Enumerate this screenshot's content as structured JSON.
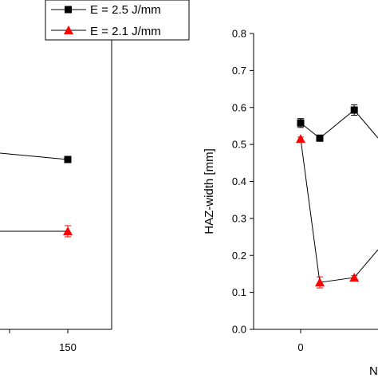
{
  "chart_data": [
    {
      "type": "line",
      "xlim": [
        null,
        150
      ],
      "x_ticks": [
        150
      ],
      "x_tick_labels": [
        "150"
      ],
      "series": [
        {
          "name": "E = 2.5 J/mm",
          "color": "#000000",
          "marker": "square",
          "x": [
            150
          ],
          "y": [
            null
          ]
        },
        {
          "name": "E = 2.1 J/mm",
          "color": "#ff0000",
          "marker": "triangle",
          "x": [
            150
          ],
          "y": [
            null
          ]
        }
      ],
      "legend": "top-left",
      "grid": false
    },
    {
      "type": "line",
      "ylabel": "HAZ-width [mm]",
      "xlabel": "N",
      "ylim": [
        0.0,
        0.8
      ],
      "y_ticks": [
        0.0,
        0.1,
        0.2,
        0.3,
        0.4,
        0.5,
        0.6,
        0.7,
        0.8
      ],
      "y_tick_labels": [
        "0.0",
        "0.1",
        "0.2",
        "0.3",
        "0.4",
        "0.5",
        "0.6",
        "0.7",
        "0.8"
      ],
      "x_ticks": [
        0
      ],
      "x_tick_labels": [
        "0"
      ],
      "series": [
        {
          "name": "E = 2.5 J/mm",
          "color": "#000000",
          "marker": "square",
          "x": [
            0,
            1,
            2.8
          ],
          "y": [
            0.558,
            0.517,
            0.593
          ],
          "y_err": [
            0.012,
            0.005,
            0.014
          ]
        },
        {
          "name": "E = 2.1 J/mm",
          "color": "#ff0000",
          "marker": "triangle",
          "x": [
            0,
            1,
            2.8
          ],
          "y": [
            0.515,
            0.127,
            0.14
          ],
          "y_err": [
            0.005,
            0.015,
            0.005
          ]
        }
      ],
      "grid": false
    }
  ]
}
